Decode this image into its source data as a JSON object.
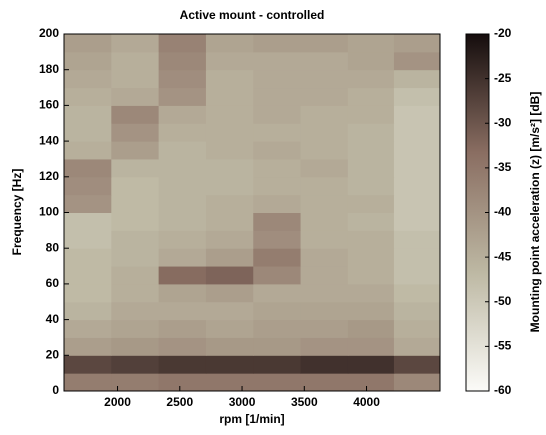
{
  "chart_data": {
    "type": "heatmap",
    "title": "Active mount - controlled",
    "x_label": "rpm [1/min]",
    "y_label": "Frequency [Hz]",
    "colorbar_label": "Mounting point acceleration (z) [m/s²] [dB]",
    "x": [
      1760,
      2140,
      2520,
      2900,
      3280,
      3660,
      4040,
      4400
    ],
    "y": [
      5,
      15,
      25,
      35,
      45,
      55,
      65,
      75,
      85,
      95,
      105,
      115,
      125,
      135,
      145,
      155,
      165,
      175,
      185,
      195
    ],
    "z": [
      [
        -36,
        -36,
        -35,
        -35,
        -35,
        -35,
        -35,
        -38
      ],
      [
        -28,
        -27,
        -26,
        -26,
        -26,
        -25,
        -25,
        -28
      ],
      [
        -42,
        -41,
        -40,
        -41,
        -41,
        -40,
        -40,
        -44
      ],
      [
        -44,
        -43,
        -42,
        -43,
        -42,
        -42,
        -41,
        -45
      ],
      [
        -46,
        -44,
        -44,
        -44,
        -43,
        -43,
        -43,
        -46
      ],
      [
        -47,
        -45,
        -43,
        -42,
        -44,
        -44,
        -44,
        -47
      ],
      [
        -47,
        -45,
        -33,
        -32,
        -38,
        -44,
        -45,
        -48
      ],
      [
        -47,
        -46,
        -44,
        -42,
        -36,
        -44,
        -45,
        -48
      ],
      [
        -48,
        -46,
        -45,
        -44,
        -39,
        -45,
        -45,
        -48
      ],
      [
        -48,
        -47,
        -46,
        -45,
        -38,
        -45,
        -46,
        -49
      ],
      [
        -40,
        -47,
        -46,
        -45,
        -44,
        -45,
        -45,
        -49
      ],
      [
        -39,
        -47,
        -46,
        -46,
        -45,
        -45,
        -46,
        -49
      ],
      [
        -38,
        -46,
        -46,
        -46,
        -45,
        -44,
        -46,
        -49
      ],
      [
        -45,
        -42,
        -46,
        -45,
        -44,
        -45,
        -46,
        -49
      ],
      [
        -46,
        -40,
        -45,
        -45,
        -45,
        -45,
        -46,
        -49
      ],
      [
        -46,
        -38,
        -44,
        -45,
        -44,
        -45,
        -45,
        -49
      ],
      [
        -45,
        -44,
        -40,
        -45,
        -44,
        -44,
        -45,
        -48
      ],
      [
        -44,
        -45,
        -39,
        -45,
        -44,
        -44,
        -44,
        -46
      ],
      [
        -43,
        -45,
        -38,
        -44,
        -44,
        -44,
        -43,
        -40
      ],
      [
        -42,
        -44,
        -37,
        -43,
        -42,
        -42,
        -43,
        -42
      ]
    ],
    "xlim": [
      1570,
      4590
    ],
    "xticks": [
      2000,
      2500,
      3000,
      3500,
      4000
    ],
    "ylim": [
      0,
      200
    ],
    "yticks": [
      0,
      20,
      40,
      60,
      80,
      100,
      120,
      140,
      160,
      180,
      200
    ],
    "zlim": [
      -60,
      -20
    ],
    "zticks": [
      -60,
      -55,
      -50,
      -45,
      -40,
      -35,
      -30,
      -25,
      -20
    ],
    "colormap": [
      "#fbfbf8",
      "#bdb8a3",
      "#8a6e62",
      "#150d0d"
    ]
  }
}
